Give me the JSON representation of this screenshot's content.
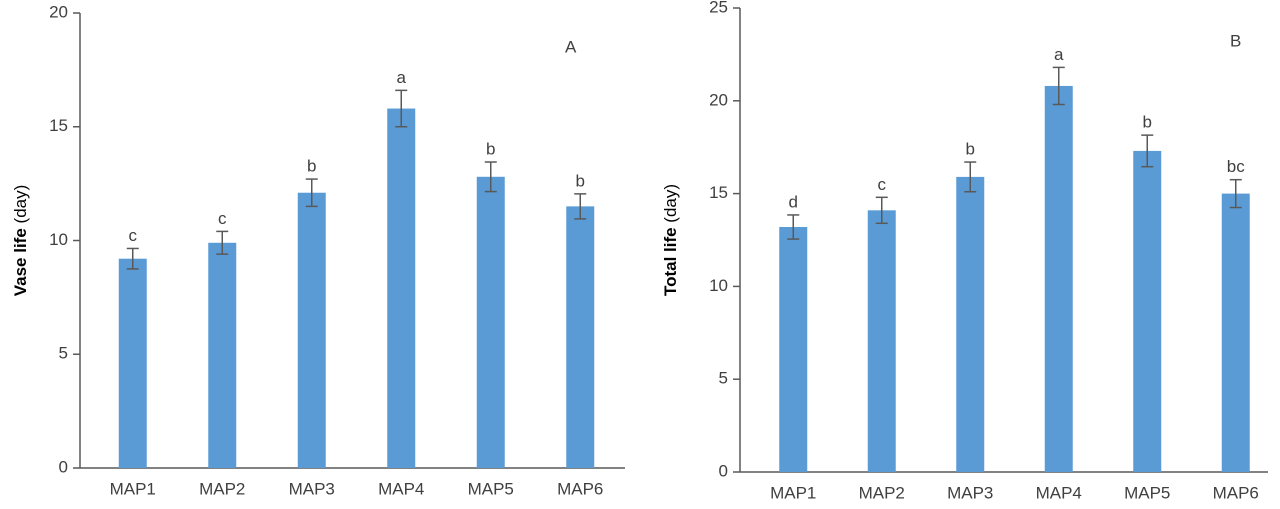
{
  "chart_data": [
    {
      "type": "bar",
      "ylabel": "Vase life",
      "ylabel_unit": "(day)",
      "panel": "A",
      "categories": [
        "MAP1",
        "MAP2",
        "MAP3",
        "MAP4",
        "MAP5",
        "MAP6"
      ],
      "values": [
        9.2,
        9.9,
        12.1,
        15.8,
        12.8,
        11.5
      ],
      "errors": [
        0.45,
        0.5,
        0.6,
        0.8,
        0.65,
        0.55
      ],
      "annotations": [
        "c",
        "c",
        "b",
        "a",
        "b",
        "b"
      ],
      "color": "#5b9bd5",
      "ylim": [
        0,
        20
      ],
      "yticks": [
        0,
        5,
        10,
        15,
        20
      ]
    },
    {
      "type": "bar",
      "ylabel": "Total life",
      "ylabel_unit": "(day)",
      "panel": "B",
      "categories": [
        "MAP1",
        "MAP2",
        "MAP3",
        "MAP4",
        "MAP5",
        "MAP6"
      ],
      "values": [
        13.2,
        14.1,
        15.9,
        20.8,
        17.3,
        15.0
      ],
      "errors": [
        0.65,
        0.7,
        0.8,
        1.0,
        0.85,
        0.75
      ],
      "annotations": [
        "d",
        "c",
        "b",
        "a",
        "b",
        "bc"
      ],
      "color": "#5b9bd5",
      "ylim": [
        0,
        25
      ],
      "yticks": [
        0,
        5,
        10,
        15,
        20,
        25
      ]
    }
  ]
}
